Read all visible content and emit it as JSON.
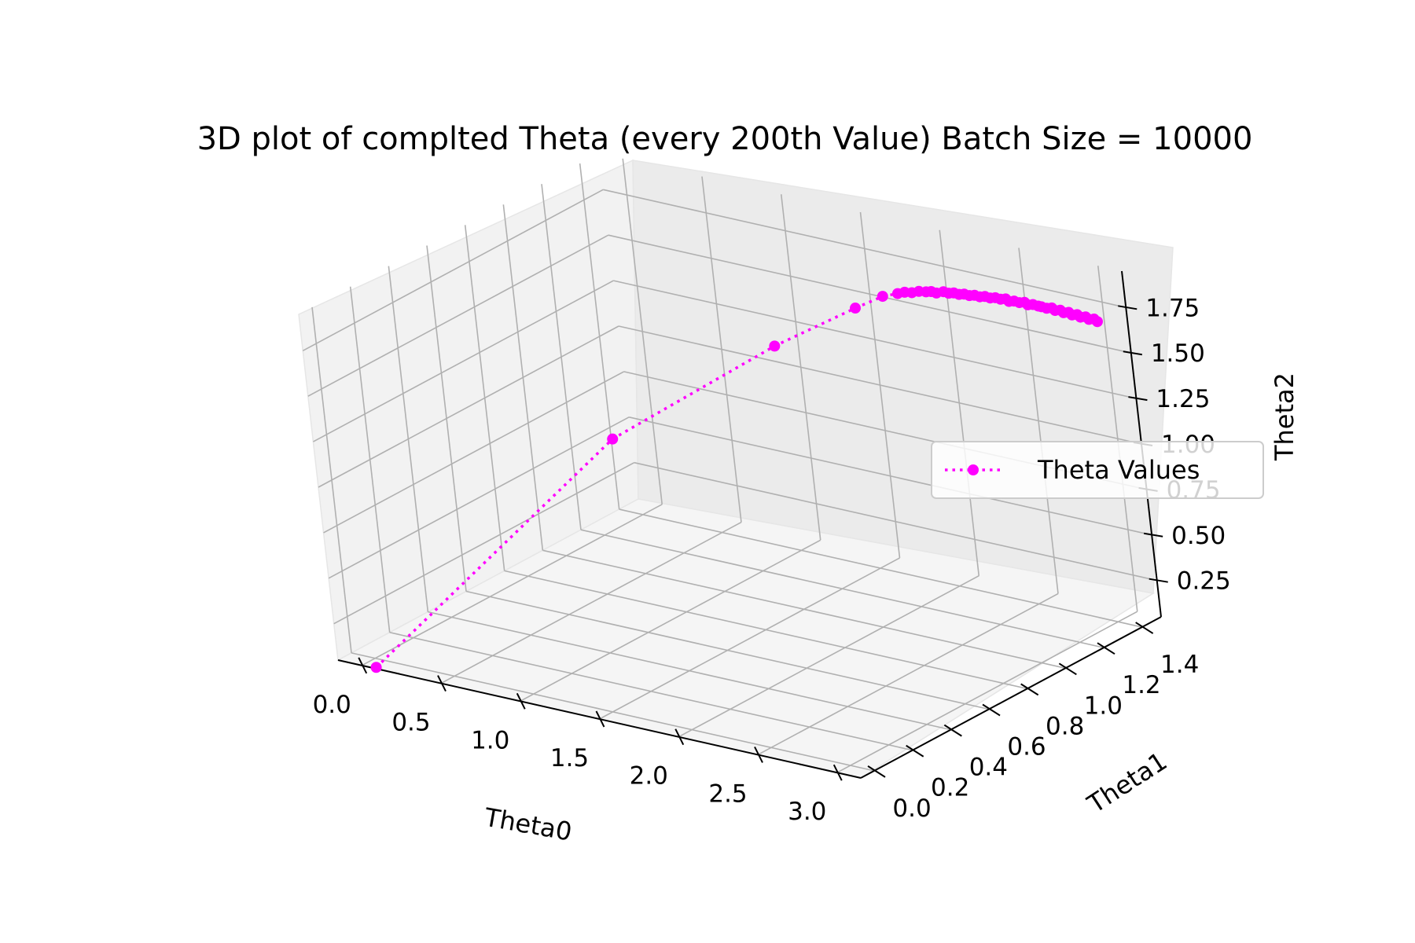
{
  "chart_data": {
    "type": "line3d",
    "title": "3D plot of complted Theta (every 200th Value) Batch Size = 10000",
    "xlabel": "Theta0",
    "ylabel": "Theta1",
    "zlabel": "Theta2",
    "x_ticks": [
      "0.0",
      "0.5",
      "1.0",
      "1.5",
      "2.0",
      "2.5",
      "3.0"
    ],
    "y_ticks": [
      "0.0",
      "0.2",
      "0.4",
      "0.6",
      "0.8",
      "1.0",
      "1.2",
      "1.4"
    ],
    "z_ticks": [
      "0.25",
      "0.50",
      "0.75",
      "1.00",
      "1.25",
      "1.50",
      "1.75"
    ],
    "xlim": [
      -0.15,
      3.15
    ],
    "ylim": [
      -0.07,
      1.5
    ],
    "zlim": [
      0.05,
      1.95
    ],
    "grid": true,
    "legend_position": "center-right",
    "series": [
      {
        "name": "Theta Values",
        "color": "#ff00ff",
        "line_style": "dotted",
        "marker": "circle",
        "x": [
          0.0,
          0.95,
          1.7,
          2.08,
          2.2,
          2.26,
          2.28,
          2.3,
          2.32,
          2.34,
          2.36,
          2.38,
          2.4,
          2.42,
          2.44,
          2.46,
          2.48,
          2.5,
          2.52,
          2.54,
          2.56,
          2.58,
          2.6,
          2.62,
          2.64,
          2.66,
          2.68,
          2.7,
          2.72,
          2.74,
          2.76,
          2.78,
          2.8,
          2.82,
          2.84,
          2.86,
          2.88,
          2.9,
          2.92,
          2.94,
          2.96,
          2.98,
          3.0,
          3.02,
          3.04,
          3.06
        ],
        "y": [
          0.0,
          0.57,
          0.85,
          0.98,
          1.03,
          1.06,
          1.08,
          1.1,
          1.12,
          1.14,
          1.15,
          1.16,
          1.18,
          1.19,
          1.2,
          1.21,
          1.22,
          1.23,
          1.24,
          1.25,
          1.26,
          1.27,
          1.28,
          1.29,
          1.3,
          1.3,
          1.31,
          1.32,
          1.33,
          1.33,
          1.34,
          1.35,
          1.35,
          1.36,
          1.37,
          1.37,
          1.38,
          1.38,
          1.39,
          1.39,
          1.4,
          1.4,
          1.41,
          1.41,
          1.42,
          1.42
        ],
        "z": [
          0.0,
          1.12,
          1.62,
          1.83,
          1.89,
          1.9,
          1.9,
          1.89,
          1.89,
          1.88,
          1.88,
          1.87,
          1.87,
          1.86,
          1.86,
          1.85,
          1.85,
          1.84,
          1.84,
          1.83,
          1.83,
          1.82,
          1.82,
          1.81,
          1.81,
          1.8,
          1.8,
          1.79,
          1.79,
          1.78,
          1.78,
          1.77,
          1.77,
          1.76,
          1.76,
          1.75,
          1.75,
          1.74,
          1.74,
          1.73,
          1.73,
          1.72,
          1.72,
          1.71,
          1.71,
          1.7
        ]
      }
    ]
  }
}
